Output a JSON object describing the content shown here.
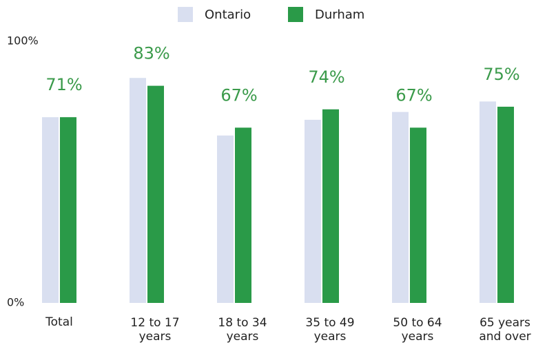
{
  "chart_data": {
    "type": "bar",
    "categories": [
      "Total",
      "12 to 17 years",
      "18 to 34 years",
      "35 to 49 years",
      "50 to 64 years",
      "65 years and over"
    ],
    "series": [
      {
        "name": "Ontario",
        "color": "#d9dff0",
        "values": [
          71,
          86,
          64,
          70,
          73,
          77
        ]
      },
      {
        "name": "Durham",
        "color": "#2a9a48",
        "values": [
          71,
          83,
          67,
          74,
          67,
          75
        ],
        "value_labels": [
          "71%",
          "83%",
          "67%",
          "74%",
          "67%",
          "75%"
        ]
      }
    ],
    "ylim": [
      0,
      100
    ],
    "yticks": [
      {
        "value": 100,
        "label": "100%"
      },
      {
        "value": 0,
        "label": "0%"
      }
    ],
    "value_label_color": "#3a9a4a"
  }
}
